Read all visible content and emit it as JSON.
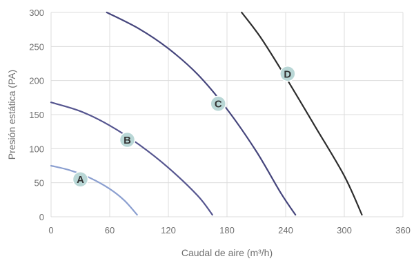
{
  "chart_data": {
    "type": "line",
    "xlabel": "Caudal de aire (m³/h)",
    "ylabel": "Presión estática (PA)",
    "xlim": [
      0,
      360
    ],
    "ylim": [
      0,
      300
    ],
    "xticks": [
      0,
      60,
      120,
      180,
      240,
      300,
      360
    ],
    "yticks": [
      0,
      50,
      100,
      150,
      200,
      250,
      300
    ],
    "grid": true,
    "series": [
      {
        "name": "A",
        "color": "#8b9fd0",
        "points": [
          [
            0,
            75
          ],
          [
            20,
            68
          ],
          [
            40,
            57
          ],
          [
            60,
            41
          ],
          [
            75,
            24
          ],
          [
            88,
            3
          ]
        ]
      },
      {
        "name": "B",
        "color": "#55558f",
        "points": [
          [
            0,
            168
          ],
          [
            30,
            155
          ],
          [
            60,
            134
          ],
          [
            90,
            106
          ],
          [
            120,
            72
          ],
          [
            150,
            31
          ],
          [
            165,
            3
          ]
        ]
      },
      {
        "name": "C",
        "color": "#45457c",
        "points": [
          [
            57,
            300
          ],
          [
            90,
            276
          ],
          [
            120,
            247
          ],
          [
            150,
            209
          ],
          [
            180,
            158
          ],
          [
            210,
            96
          ],
          [
            235,
            35
          ],
          [
            250,
            3
          ]
        ]
      },
      {
        "name": "D",
        "color": "#2d2d2d",
        "points": [
          [
            195,
            300
          ],
          [
            215,
            262
          ],
          [
            240,
            205
          ],
          [
            270,
            133
          ],
          [
            300,
            60
          ],
          [
            318,
            3
          ]
        ]
      }
    ],
    "annotations": [
      {
        "text": "A",
        "x": 30,
        "y": 55
      },
      {
        "text": "B",
        "x": 78,
        "y": 113
      },
      {
        "text": "C",
        "x": 171,
        "y": 166
      },
      {
        "text": "D",
        "x": 242,
        "y": 210
      }
    ]
  }
}
